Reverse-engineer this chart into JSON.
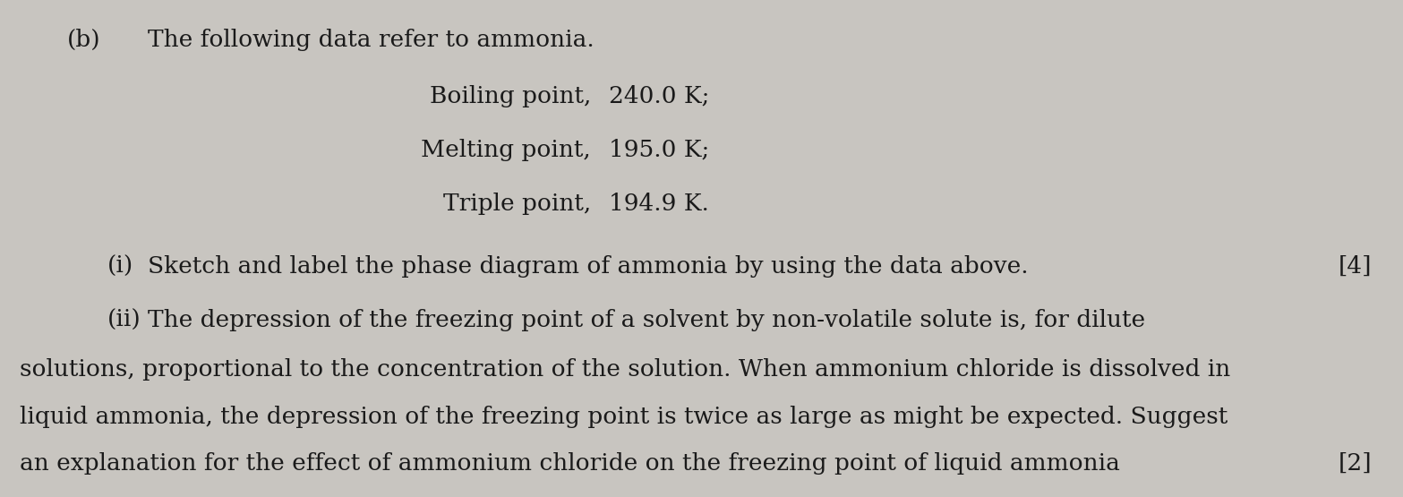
{
  "background_color": "#c8c5c0",
  "part_label": "(b)",
  "line1": "The following data refer to ammonia.",
  "data_lines": [
    {
      "label": "Boiling point,",
      "value": "240.0 K;"
    },
    {
      "label": "Melting point,",
      "value": "195.0 K;"
    },
    {
      "label": "Triple point,",
      "value": "194.9 K."
    }
  ],
  "part_i_label": "(i)",
  "part_i_text": "Sketch and label the phase diagram of ammonia by using the data above.",
  "part_i_mark": "[4]",
  "part_ii_label": "(ii)",
  "part_ii_text1": "The depression of the freezing point of a solvent by non-volatile solute is, for dilute",
  "part_ii_text2": "solutions, proportional to the concentration of the solution. When ammonium chloride is dissolved in",
  "part_ii_text3": "liquid ammonia, the depression of the freezing point is twice as large as might be expected. Suggest",
  "part_ii_text4": "an explanation for the effect of ammonium chloride on the freezing point of liquid ammonia",
  "mark_end": "[2]",
  "font_size": 19,
  "text_color": "#1a1a1a"
}
